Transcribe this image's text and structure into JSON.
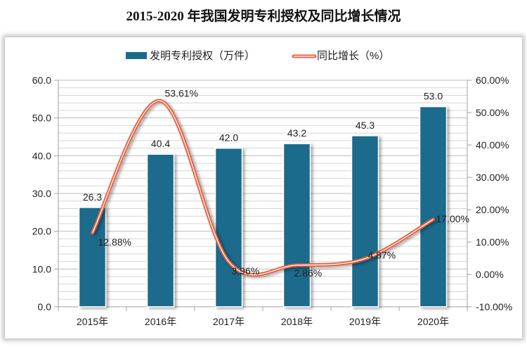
{
  "chart_data": {
    "type": "bar+line",
    "title": "2015-2020 年我国发明专利授权及同比增长情况",
    "categories": [
      "2015年",
      "2016年",
      "2017年",
      "2018年",
      "2019年",
      "2020年"
    ],
    "series": [
      {
        "name": "发明专利授权（万件）",
        "type": "bar",
        "axis": "left",
        "values": [
          26.3,
          40.4,
          42.0,
          43.2,
          45.3,
          53.0
        ],
        "labels": [
          "26.3",
          "40.4",
          "42.0",
          "43.2",
          "45.3",
          "53.0"
        ],
        "color": "#1b6a8c"
      },
      {
        "name": "同比增长（%）",
        "type": "line",
        "smooth": true,
        "axis": "right",
        "values": [
          12.88,
          53.61,
          3.96,
          2.86,
          4.87,
          17.0
        ],
        "labels": [
          "12.88%",
          "53.61%",
          "3.96%",
          "2.86%",
          "4.87%",
          "17.00%"
        ],
        "color": "#e8603c"
      }
    ],
    "y_left": {
      "min": 0,
      "max": 60,
      "step": 10,
      "ticks": [
        "0.0",
        "10.0",
        "20.0",
        "30.0",
        "40.0",
        "50.0",
        "60.0"
      ]
    },
    "y_right": {
      "min": -10,
      "max": 60,
      "step": 10,
      "ticks": [
        "-10.00%",
        "0.00%",
        "10.00%",
        "20.00%",
        "30.00%",
        "40.00%",
        "50.00%",
        "60.00%"
      ]
    },
    "grid": true,
    "legend": "top"
  }
}
